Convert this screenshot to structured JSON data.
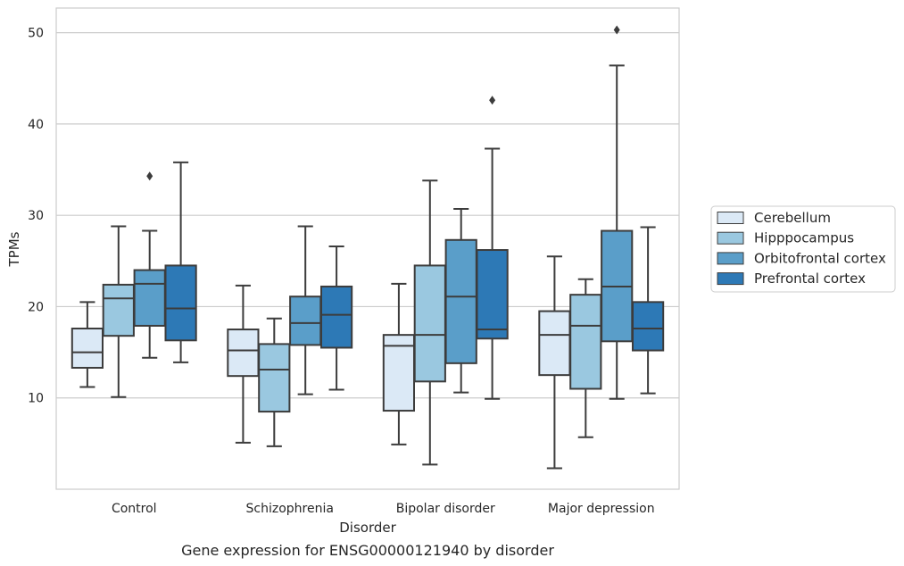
{
  "caption": "Gene expression for ENSG00000121940 by disorder",
  "chart_data": {
    "type": "box",
    "xlabel": "Disorder",
    "ylabel": "TPMs",
    "ylim": [
      0,
      52.7
    ],
    "yticks": [
      10,
      20,
      30,
      40,
      50
    ],
    "grid": "horizontal",
    "legend_position": "right",
    "categories": [
      "Control",
      "Schizophrenia",
      "Bipolar disorder",
      "Major depression"
    ],
    "series": [
      {
        "name": "Cerebellum",
        "color": "#dbe9f6",
        "boxes": [
          {
            "whislo": 11.2,
            "q1": 13.3,
            "med": 15.0,
            "q3": 17.6,
            "whishi": 20.5,
            "fliers": []
          },
          {
            "whislo": 5.1,
            "q1": 12.4,
            "med": 15.2,
            "q3": 17.5,
            "whishi": 22.3,
            "fliers": []
          },
          {
            "whislo": 4.9,
            "q1": 8.6,
            "med": 15.7,
            "q3": 16.9,
            "whishi": 22.5,
            "fliers": []
          },
          {
            "whislo": 2.3,
            "q1": 12.5,
            "med": 16.9,
            "q3": 19.5,
            "whishi": 25.5,
            "fliers": []
          }
        ]
      },
      {
        "name": "Hipppocampus",
        "color": "#9ac8e0",
        "boxes": [
          {
            "whislo": 10.1,
            "q1": 16.8,
            "med": 20.9,
            "q3": 22.4,
            "whishi": 28.8,
            "fliers": []
          },
          {
            "whislo": 4.7,
            "q1": 8.5,
            "med": 13.1,
            "q3": 15.9,
            "whishi": 18.7,
            "fliers": []
          },
          {
            "whislo": 2.7,
            "q1": 11.8,
            "med": 16.9,
            "q3": 24.5,
            "whishi": 33.8,
            "fliers": []
          },
          {
            "whislo": 5.7,
            "q1": 11.0,
            "med": 17.9,
            "q3": 21.3,
            "whishi": 23.0,
            "fliers": []
          }
        ]
      },
      {
        "name": "Orbitofrontal cortex",
        "color": "#5a9ec9",
        "boxes": [
          {
            "whislo": 14.4,
            "q1": 17.9,
            "med": 22.5,
            "q3": 24.0,
            "whishi": 28.3,
            "fliers": [
              34.3
            ]
          },
          {
            "whislo": 10.4,
            "q1": 15.8,
            "med": 18.2,
            "q3": 21.1,
            "whishi": 28.8,
            "fliers": []
          },
          {
            "whislo": 10.6,
            "q1": 13.8,
            "med": 21.1,
            "q3": 27.3,
            "whishi": 30.7,
            "fliers": []
          },
          {
            "whislo": 9.9,
            "q1": 16.2,
            "med": 22.2,
            "q3": 28.3,
            "whishi": 46.4,
            "fliers": [
              50.3
            ]
          }
        ]
      },
      {
        "name": "Prefrontal cortex",
        "color": "#2d79b6",
        "boxes": [
          {
            "whislo": 13.9,
            "q1": 16.3,
            "med": 19.8,
            "q3": 24.5,
            "whishi": 35.8,
            "fliers": []
          },
          {
            "whislo": 10.9,
            "q1": 15.5,
            "med": 19.1,
            "q3": 22.2,
            "whishi": 26.6,
            "fliers": []
          },
          {
            "whislo": 9.9,
            "q1": 16.5,
            "med": 17.5,
            "q3": 26.2,
            "whishi": 37.3,
            "fliers": [
              42.6
            ]
          },
          {
            "whislo": 10.5,
            "q1": 15.2,
            "med": 17.6,
            "q3": 20.5,
            "whishi": 28.7,
            "fliers": []
          }
        ]
      }
    ]
  }
}
